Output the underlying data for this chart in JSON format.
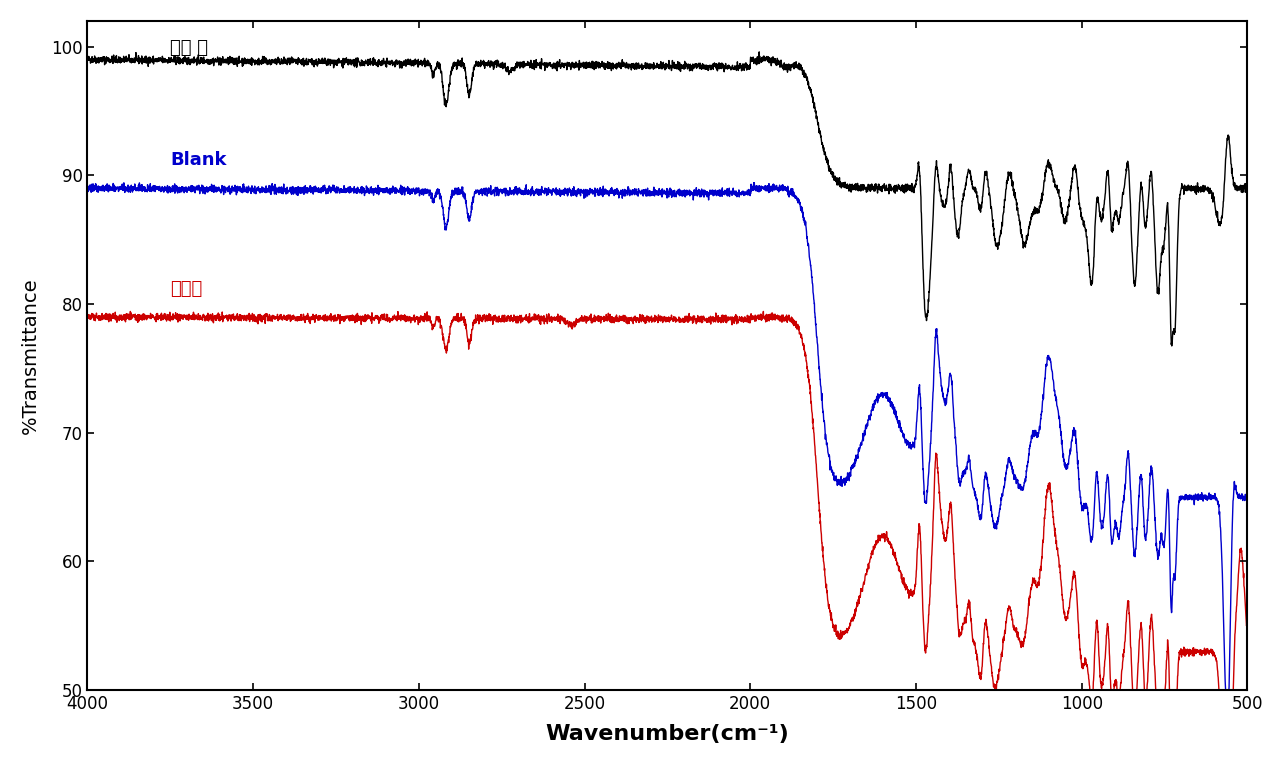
{
  "xlabel": "Wavenumber(cm⁻¹)",
  "ylabel": "%Transmittance",
  "xlim": [
    4000,
    500
  ],
  "ylim": [
    50,
    102
  ],
  "yticks": [
    50,
    60,
    70,
    80,
    90,
    100
  ],
  "xticks": [
    4000,
    3500,
    3000,
    2500,
    2000,
    1500,
    1000,
    500
  ],
  "labels": {
    "black": "열화 전",
    "blue": "Blank",
    "red": "시제품"
  },
  "colors": {
    "black": "#000000",
    "blue": "#0000cc",
    "red": "#cc0000"
  },
  "label_positions": {
    "black": [
      3750,
      99.2
    ],
    "blue": [
      3750,
      90.5
    ],
    "red": [
      3750,
      80.5
    ]
  },
  "background": "#ffffff"
}
